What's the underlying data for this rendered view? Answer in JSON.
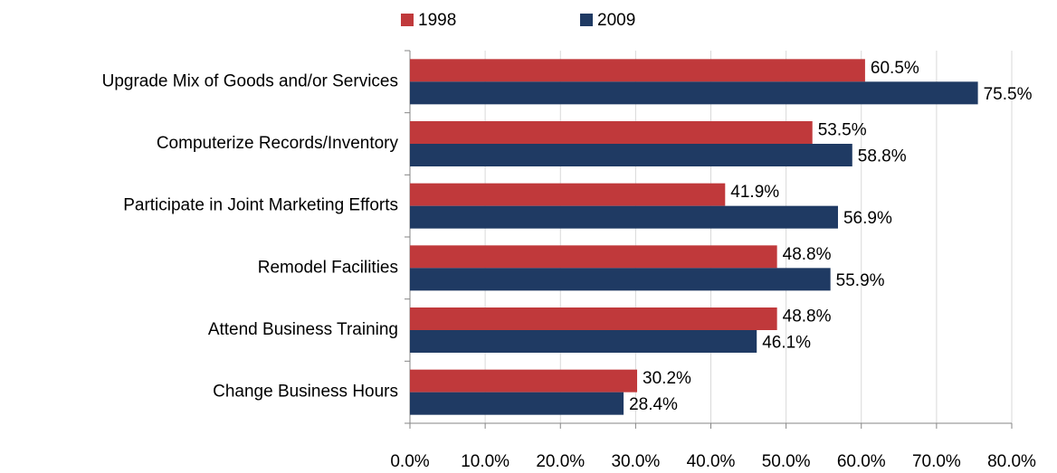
{
  "chart_data": {
    "type": "hbar",
    "categories": [
      "Upgrade Mix of Goods and/or Services",
      "Computerize Records/Inventory",
      "Participate in Joint Marketing Efforts",
      "Remodel Facilities",
      "Attend Business Training",
      "Change Business Hours"
    ],
    "series": [
      {
        "name": "1998",
        "color": "#c0393b",
        "values": [
          60.5,
          53.5,
          41.9,
          48.8,
          48.8,
          30.2
        ],
        "value_labels": [
          "60.5%",
          "53.5%",
          "41.9%",
          "48.8%",
          "48.8%",
          "30.2%"
        ]
      },
      {
        "name": "2009",
        "color": "#1f3a63",
        "values": [
          75.5,
          58.8,
          56.9,
          55.9,
          46.1,
          28.4
        ],
        "value_labels": [
          "75.5%",
          "58.8%",
          "56.9%",
          "55.9%",
          "46.1%",
          "28.4%"
        ]
      }
    ],
    "xlim": [
      0,
      80
    ],
    "xticks": [
      {
        "value": 0,
        "label": "0.0%"
      },
      {
        "value": 10,
        "label": "10.0%"
      },
      {
        "value": 20,
        "label": "20.0%"
      },
      {
        "value": 30,
        "label": "30.0%"
      },
      {
        "value": 40,
        "label": "40.0%"
      },
      {
        "value": 50,
        "label": "50.0%"
      },
      {
        "value": 60,
        "label": "60.0%"
      },
      {
        "value": 70,
        "label": "70.0%"
      },
      {
        "value": 80,
        "label": "80.0%"
      }
    ],
    "grid": true,
    "legend": "top"
  }
}
